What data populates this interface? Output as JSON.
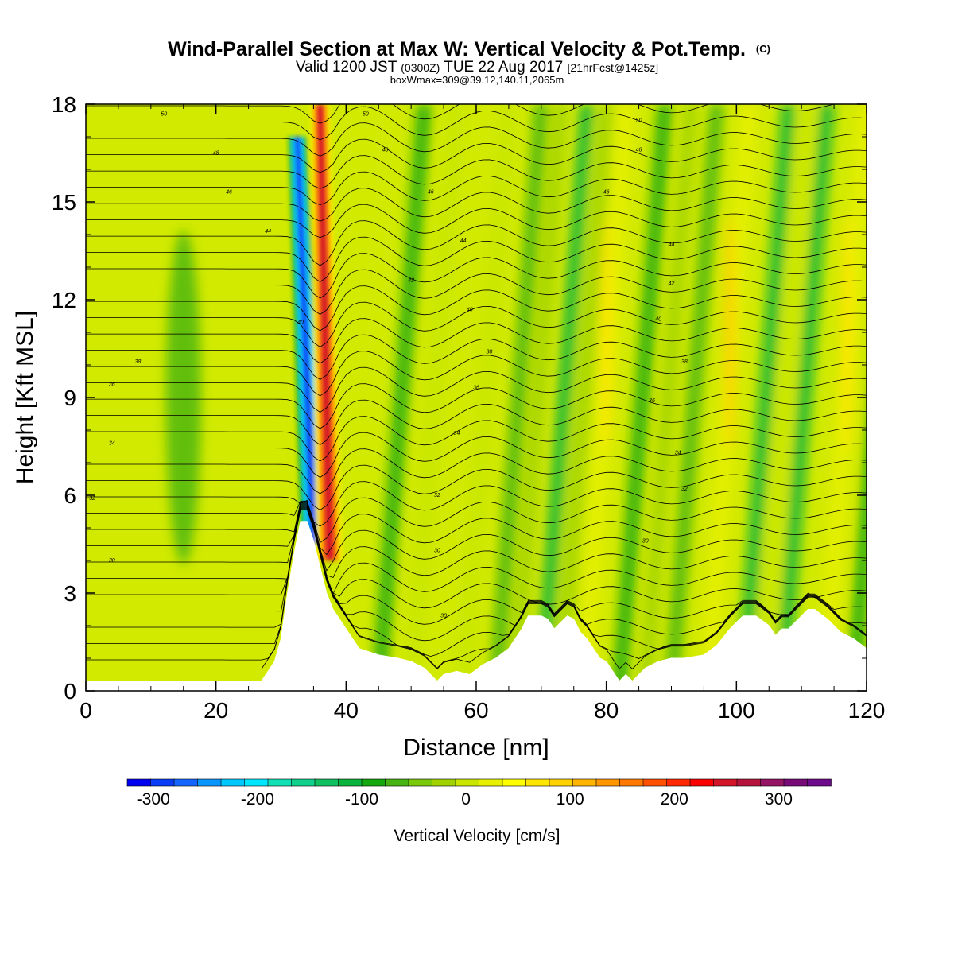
{
  "header": {
    "title_main": "Wind-Parallel Section at Max W: Vertical Velocity & Pot.Temp.",
    "title_mark": "(C)",
    "subtitle_valid": "Valid 1200 JST",
    "subtitle_utc": "(0300Z)",
    "subtitle_date": "TUE 22 Aug 2017",
    "subtitle_fcst": "[21hrFcst@1425z]",
    "subtitle_box": "boxWmax=309@39.12,140.11,2065m"
  },
  "chart_data": {
    "type": "heatmap",
    "xlabel": "Distance [nm]",
    "ylabel": "Height [Kft MSL]",
    "xlim": [
      0,
      120
    ],
    "ylim": [
      0,
      18
    ],
    "xticks": [
      "0",
      "20",
      "40",
      "60",
      "80",
      "100",
      "120"
    ],
    "yticks": [
      "0",
      "3",
      "6",
      "9",
      "12",
      "15",
      "18"
    ],
    "colorbar": {
      "label": "Vertical Velocity [cm/s]",
      "min": -325,
      "max": 350,
      "step": 25,
      "tick_labels": [
        "-300",
        "-200",
        "-100",
        "0",
        "100",
        "200",
        "300"
      ],
      "colors": [
        "#0000f0",
        "#0a3cf5",
        "#1464ff",
        "#0a96ff",
        "#00c8ff",
        "#00e6ff",
        "#10e0b4",
        "#10d08c",
        "#10c060",
        "#0ab43c",
        "#14a80e",
        "#46b412",
        "#7ac80a",
        "#a0d200",
        "#c8e600",
        "#e6f000",
        "#ffff00",
        "#ffe600",
        "#ffd200",
        "#ffb400",
        "#ff9600",
        "#ff7800",
        "#ff5000",
        "#ff2800",
        "#fa0000",
        "#d21428",
        "#b4143c",
        "#961464",
        "#780a78",
        "#6e0a8c"
      ]
    },
    "w_features": [
      {
        "kind": "updraft_core",
        "x_nm": 37.5,
        "w_max": 309,
        "z_kft": [
          4,
          18
        ]
      },
      {
        "kind": "downdraft_core",
        "x_nm": 35.0,
        "w_min": -300,
        "z_kft": [
          4.5,
          17
        ]
      },
      {
        "kind": "updraft_band",
        "x_nm": 77,
        "w_max": 110
      },
      {
        "kind": "updraft_band",
        "x_nm": 96,
        "w_max": 130
      },
      {
        "kind": "updraft_band",
        "x_nm": 114,
        "w_max": 110
      }
    ],
    "theta_contours": {
      "units": "C",
      "values": [
        30,
        32,
        34,
        36,
        38,
        40,
        42,
        44,
        46,
        48,
        50
      ],
      "labels": [
        "30",
        "32",
        "34",
        "36",
        "38",
        "40",
        "42",
        "44",
        "46",
        "48",
        "50"
      ]
    },
    "terrain": {
      "x_nm": [
        0,
        27,
        28,
        29,
        30,
        31,
        32,
        33,
        34,
        35,
        36,
        37,
        38,
        39,
        40,
        41,
        42,
        45,
        48,
        50,
        52,
        53,
        54,
        55,
        57,
        59,
        61,
        63,
        65,
        67,
        68,
        70,
        71,
        72,
        73,
        74,
        75,
        76,
        77,
        78,
        79,
        80,
        81,
        82,
        83,
        84,
        85,
        86,
        88,
        90,
        92,
        95,
        97,
        99,
        100,
        101,
        103,
        105,
        106,
        107,
        108,
        110,
        111,
        112,
        114,
        116,
        118,
        120
      ],
      "height_kft": [
        0.3,
        0.3,
        0.6,
        0.9,
        1.6,
        3.0,
        4.2,
        5.2,
        5.2,
        4.6,
        3.8,
        3.0,
        2.5,
        2.2,
        1.9,
        1.6,
        1.3,
        1.1,
        1.0,
        0.9,
        0.7,
        0.5,
        0.3,
        0.5,
        0.6,
        0.5,
        0.8,
        1.0,
        1.3,
        1.9,
        2.3,
        2.3,
        2.2,
        1.9,
        2.1,
        2.3,
        2.2,
        1.8,
        1.6,
        1.3,
        1.0,
        0.9,
        0.6,
        0.3,
        0.5,
        0.3,
        0.5,
        0.7,
        0.9,
        1.0,
        1.0,
        1.1,
        1.4,
        1.9,
        2.1,
        2.3,
        2.3,
        2.0,
        1.7,
        1.9,
        1.9,
        2.3,
        2.5,
        2.5,
        2.2,
        1.8,
        1.6,
        1.3
      ]
    }
  }
}
